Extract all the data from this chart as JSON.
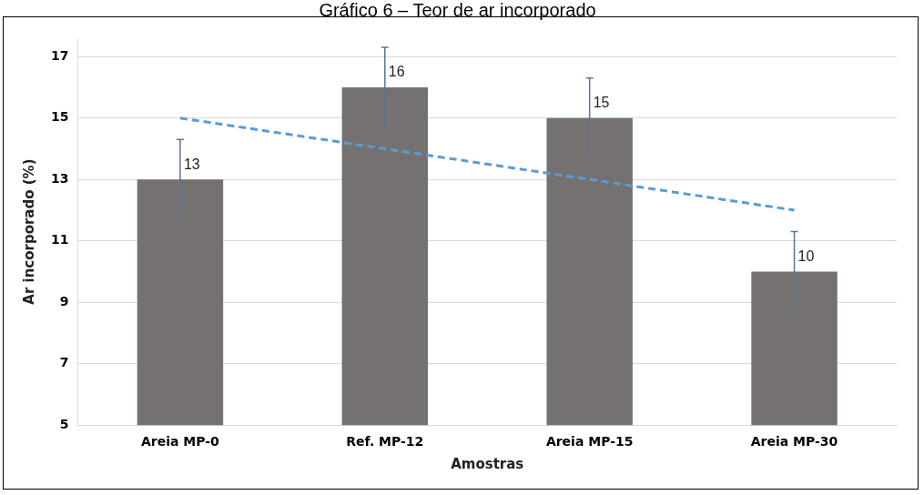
{
  "chart_data": {
    "type": "bar",
    "title": "Gráfico 6 – Teor de ar incorporado",
    "xlabel": "Amostras",
    "ylabel": "Ar incorporado (%)",
    "categories": [
      "Areia MP-0",
      "Ref. MP-12",
      "Areia MP-15",
      "Areia MP-30"
    ],
    "series": [
      {
        "color": "#767171",
        "values": [
          13,
          16,
          15,
          10
        ],
        "value_labels": [
          "13",
          "16",
          "15",
          "10"
        ],
        "errors": [
          1.3,
          1.3,
          1.3,
          1.3
        ]
      },
      {
        "type": "line",
        "color": "#5b9bd5",
        "values": [
          15,
          14,
          13,
          12
        ],
        "line_style": "dashed",
        "marker": "none"
      }
    ],
    "ylim": [
      5,
      17.6
    ],
    "yticks": [
      5,
      7,
      9,
      11,
      13,
      15,
      17
    ],
    "grid": "y",
    "legend": false
  }
}
